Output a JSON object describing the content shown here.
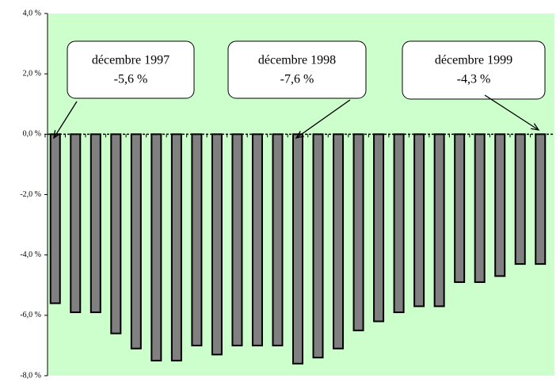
{
  "chart_data": {
    "type": "bar",
    "categories": [
      null,
      null,
      null,
      null,
      null,
      null,
      null,
      null,
      null,
      null,
      null,
      null,
      null,
      null,
      null,
      null,
      null,
      null,
      null,
      null,
      null,
      null,
      null,
      null,
      null
    ],
    "values": [
      -5.6,
      -5.9,
      -5.9,
      -6.6,
      -7.1,
      -7.5,
      -7.5,
      -7.0,
      -7.3,
      -7.0,
      -7.0,
      -7.0,
      -7.6,
      -7.4,
      -7.1,
      -6.5,
      -6.2,
      -5.9,
      -5.7,
      -5.7,
      -4.9,
      -4.9,
      -4.7,
      -4.3,
      -4.3
    ],
    "color": "#808080",
    "background": "#ccffcc",
    "ylim": [
      -8,
      4
    ],
    "yticks": [
      {
        "value": 4,
        "label": "4,0 %"
      },
      {
        "value": 2,
        "label": "2,0 %"
      },
      {
        "value": 0,
        "label": "0,0 %"
      },
      {
        "value": -2,
        "label": "-2,0 %"
      },
      {
        "value": -4,
        "label": "-4,0 %"
      },
      {
        "value": -6,
        "label": "-6,0 %"
      },
      {
        "value": -8,
        "label": "-8,0 %"
      }
    ],
    "annotations": [
      {
        "title": "décembre 1997",
        "text": "-5,6 %"
      },
      {
        "title": "décembre 1998",
        "text": "-7,6 %"
      },
      {
        "title": "décembre 1999",
        "text": "-4,3 %"
      }
    ]
  }
}
